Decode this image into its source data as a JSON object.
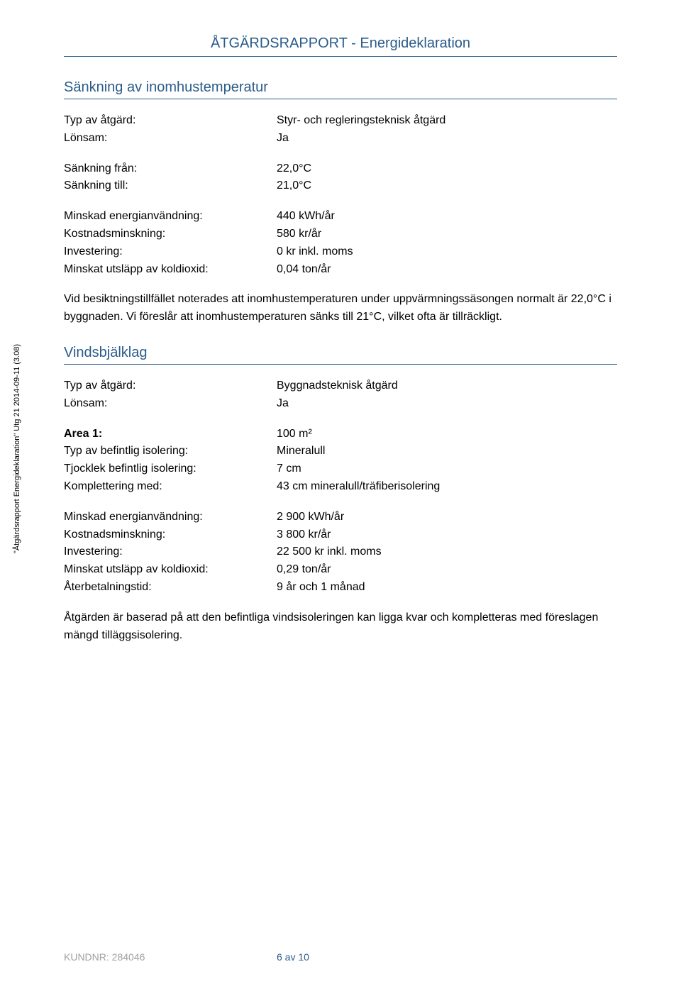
{
  "doc_title": "ÅTGÄRDSRAPPORT - Energideklaration",
  "sidebar_text": "\"Åtgärdsrapport Energideklaration\" Utg 21 2014-09-11 (3.08)",
  "section1": {
    "title": "Sänkning av inomhustemperatur",
    "block1": [
      {
        "label": "Typ av åtgärd:",
        "value": "Styr- och regleringsteknisk åtgärd"
      },
      {
        "label": "Lönsam:",
        "value": "Ja"
      }
    ],
    "block2": [
      {
        "label": "Sänkning från:",
        "value": "22,0°C"
      },
      {
        "label": "Sänkning till:",
        "value": "21,0°C"
      }
    ],
    "block3": [
      {
        "label": "Minskad energianvändning:",
        "value": "440 kWh/år"
      },
      {
        "label": "Kostnadsminskning:",
        "value": "580 kr/år"
      },
      {
        "label": "Investering:",
        "value": "0 kr inkl. moms"
      },
      {
        "label": "Minskat utsläpp av koldioxid:",
        "value": "0,04 ton/år"
      }
    ],
    "body": "Vid besiktningstillfället noterades att inomhustemperaturen under uppvärmningssäsongen normalt är 22,0°C i byggnaden. Vi föreslår att inomhustemperaturen sänks till 21°C, vilket ofta är tillräckligt."
  },
  "section2": {
    "title": "Vindsbjälklag",
    "block1": [
      {
        "label": "Typ av åtgärd:",
        "value": "Byggnadsteknisk åtgärd"
      },
      {
        "label": "Lönsam:",
        "value": "Ja"
      }
    ],
    "block2": [
      {
        "label": "Area 1:",
        "value": "100 m²",
        "bold": true
      },
      {
        "label": "Typ av befintlig isolering:",
        "value": "Mineralull"
      },
      {
        "label": "Tjocklek befintlig isolering:",
        "value": "7 cm"
      },
      {
        "label": "Komplettering med:",
        "value": "43 cm mineralull/träfiberisolering"
      }
    ],
    "block3": [
      {
        "label": "Minskad energianvändning:",
        "value": "2 900 kWh/år"
      },
      {
        "label": "Kostnadsminskning:",
        "value": "3 800 kr/år"
      },
      {
        "label": "Investering:",
        "value": "22 500 kr inkl. moms"
      },
      {
        "label": "Minskat utsläpp av koldioxid:",
        "value": "0,29 ton/år"
      },
      {
        "label": "Återbetalningstid:",
        "value": "9 år och 1 månad"
      }
    ],
    "body": "Åtgärden är baserad på att den befintliga vindsisoleringen kan ligga kvar och kompletteras med föreslagen mängd tilläggsisolering."
  },
  "footer": {
    "customer_label": "KUNDNR: ",
    "customer_number": "284046",
    "page": "6 av 10"
  },
  "colors": {
    "accent": "#2a5c8a",
    "footer_gray": "#a0a0a0",
    "background": "#ffffff",
    "text": "#000000"
  }
}
